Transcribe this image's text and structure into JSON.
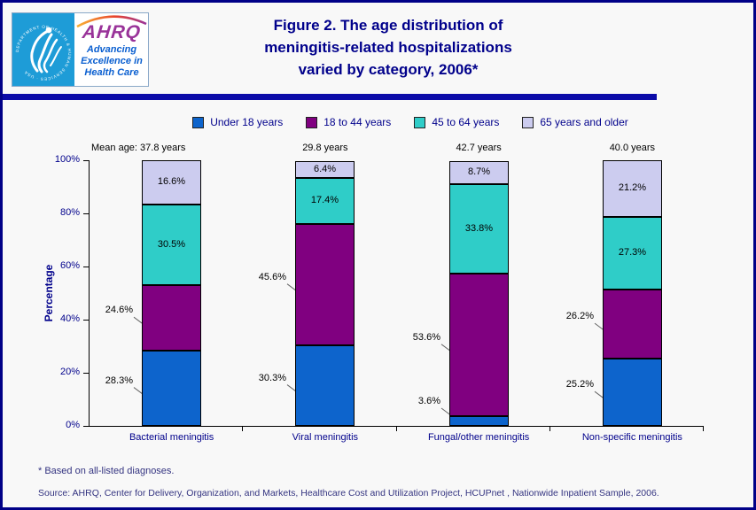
{
  "colors": {
    "navy_text": "#00008B",
    "footer_text": "#333380",
    "frame_border": "#000087",
    "divider": "#0B0BA8",
    "background": "#F8F8F8",
    "hhs_blue": "#1E9CD7",
    "ahrq_purple": "#993399",
    "tagline_blue": "#0A5FD0",
    "leader_gray": "#666666"
  },
  "header": {
    "logo": {
      "ahrq_text": "AHRQ",
      "tagline_lines": [
        "Advancing",
        "Excellence in",
        "Health Care"
      ],
      "seal_text": "DEPARTMENT OF HEALTH & HUMAN SERVICES · USA"
    },
    "title": "Figure 2. The age distribution of meningitis-related hospitalizations varied by category, 2006*",
    "title_lines": [
      "Figure 2. The age distribution of",
      "meningitis-related hospitalizations",
      "varied by category, 2006*"
    ]
  },
  "chart_data": {
    "type": "bar",
    "stacked": true,
    "title": "Figure 2. The age distribution of meningitis-related hospitalizations varied by category, 2006*",
    "categories": [
      "Bacterial meningitis",
      "Viral meningitis",
      "Fungal/other meningitis",
      "Non-specific meningitis"
    ],
    "mean_age_labels": [
      "Mean age: 37.8 years",
      "29.8 years",
      "42.7 years",
      "40.0 years"
    ],
    "series": [
      {
        "name": "Under 18 years",
        "color": "#0D64CC",
        "values": [
          28.3,
          30.3,
          3.6,
          25.2
        ],
        "label_placement": "outside"
      },
      {
        "name": "18 to 44 years",
        "color": "#800080",
        "values": [
          24.6,
          45.6,
          53.6,
          26.2
        ],
        "label_placement": "outside"
      },
      {
        "name": "45 to 64 years",
        "color": "#2FCDC8",
        "values": [
          30.5,
          17.4,
          33.8,
          27.3
        ],
        "label_placement": "inside"
      },
      {
        "name": "65 years and older",
        "color": "#CCCCEF",
        "values": [
          16.6,
          6.4,
          8.7,
          21.2
        ],
        "label_placement": "inside"
      }
    ],
    "xlabel": "",
    "ylabel": "Percentage",
    "y_ticks": [
      "0%",
      "20%",
      "40%",
      "60%",
      "80%",
      "100%"
    ],
    "ylim": [
      0,
      100
    ],
    "grid": false,
    "legend_position": "top"
  },
  "footer": {
    "footnote": "* Based on all-listed diagnoses.",
    "source": "Source: AHRQ, Center for Delivery, Organization, and Markets, Healthcare Cost and Utilization Project, HCUPnet , Nationwide Inpatient Sample, 2006."
  }
}
